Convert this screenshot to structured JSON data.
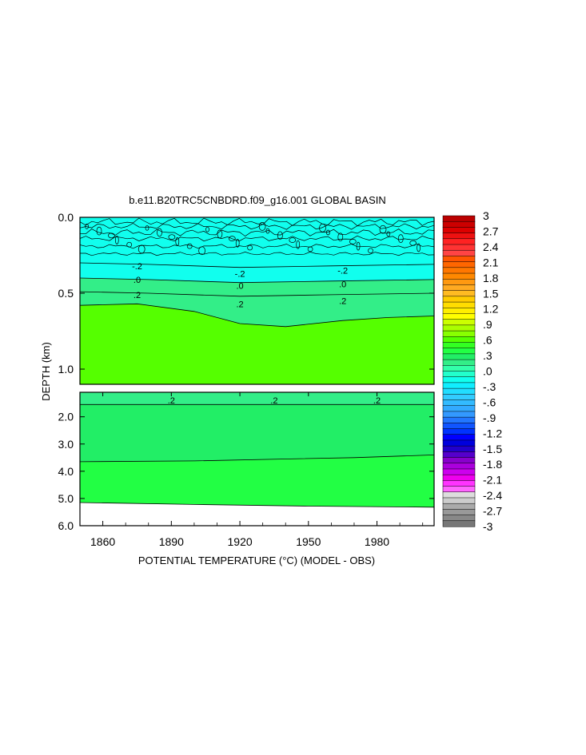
{
  "chart_data": {
    "type": "heatmap",
    "title": "b.e11.B20TRC5CNBDRD.f09_g16.001 GLOBAL BASIN",
    "xlabel": "POTENTIAL TEMPERATURE (°C) (MODEL - OBS)",
    "ylabel": "DEPTH (km)",
    "x_ticks": [
      "1860",
      "1890",
      "1920",
      "1950",
      "1980"
    ],
    "x_tick_values": [
      1860,
      1890,
      1920,
      1950,
      1980
    ],
    "xlim": [
      1850,
      2005
    ],
    "panels": [
      {
        "name": "upper",
        "ylim": [
          0.0,
          1.1
        ],
        "y_ticks": [
          "0.0",
          "0.5",
          "1.0"
        ],
        "y_tick_values": [
          0.0,
          0.5,
          1.0
        ],
        "contour_labels": [
          {
            "text": "-.2",
            "x": 1875,
            "depth": 0.32
          },
          {
            "text": ".0",
            "x": 1875,
            "depth": 0.41
          },
          {
            "text": ".2",
            "x": 1875,
            "depth": 0.51
          },
          {
            "text": "-.2",
            "x": 1920,
            "depth": 0.37
          },
          {
            "text": ".0",
            "x": 1920,
            "depth": 0.45
          },
          {
            "text": ".2",
            "x": 1920,
            "depth": 0.57
          },
          {
            "text": "-.2",
            "x": 1965,
            "depth": 0.35
          },
          {
            "text": ".0",
            "x": 1965,
            "depth": 0.44
          },
          {
            "text": ".2",
            "x": 1965,
            "depth": 0.55
          }
        ],
        "isolines": [
          {
            "level": -0.2,
            "x": [
              1850,
              1880,
              1920,
              1960,
              2005
            ],
            "depth": [
              0.3,
              0.31,
              0.33,
              0.32,
              0.31
            ]
          },
          {
            "level": 0.0,
            "x": [
              1850,
              1880,
              1920,
              1960,
              2005
            ],
            "depth": [
              0.4,
              0.41,
              0.43,
              0.42,
              0.41
            ]
          },
          {
            "level": 0.2,
            "x": [
              1850,
              1880,
              1920,
              1960,
              2005
            ],
            "depth": [
              0.49,
              0.5,
              0.52,
              0.51,
              0.5
            ]
          },
          {
            "level": 0.3,
            "x": [
              1850,
              1875,
              1900,
              1920,
              1940,
              1965,
              1985,
              2005
            ],
            "depth": [
              0.58,
              0.57,
              0.62,
              0.7,
              0.72,
              0.68,
              0.66,
              0.65
            ]
          }
        ]
      },
      {
        "name": "lower",
        "ylim": [
          1.1,
          6.0
        ],
        "y_ticks": [
          "2.0",
          "3.0",
          "4.0",
          "5.0",
          "6.0"
        ],
        "y_tick_values": [
          2.0,
          3.0,
          4.0,
          5.0,
          6.0
        ],
        "contour_labels": [
          {
            "text": ".2",
            "x": 1890,
            "depth": 1.4
          },
          {
            "text": ".2",
            "x": 1935,
            "depth": 1.4
          },
          {
            "text": ".2",
            "x": 1980,
            "depth": 1.4
          }
        ],
        "isolines": [
          {
            "level": 0.2,
            "x": [
              1850,
              2005
            ],
            "depth": [
              1.55,
              1.55
            ]
          },
          {
            "level": 0.3,
            "x": [
              1850,
              1900,
              1940,
              1970,
              2005
            ],
            "depth": [
              3.65,
              3.62,
              3.55,
              3.5,
              3.4
            ]
          },
          {
            "level": 0.2,
            "x": [
              1850,
              1900,
              1950,
              2005
            ],
            "depth": [
              5.15,
              5.22,
              5.28,
              5.32
            ]
          }
        ]
      }
    ],
    "colorbar": {
      "labels": [
        "3",
        "2.7",
        "2.4",
        "2.1",
        "1.8",
        "1.5",
        "1.2",
        ".9",
        ".6",
        ".3",
        ".0",
        "-.3",
        "-.6",
        "-.9",
        "-1.2",
        "-1.5",
        "-1.8",
        "-2.1",
        "-2.4",
        "-2.7",
        "-3"
      ],
      "colors": [
        "#bb0000",
        "#cc0000",
        "#dd0000",
        "#ee1111",
        "#ff2222",
        "#ff3333",
        "#ff4444",
        "#ff5500",
        "#ff6600",
        "#ff7700",
        "#ff8800",
        "#ff9911",
        "#ffaa22",
        "#ffbb22",
        "#ffcc00",
        "#ffdd00",
        "#ffee00",
        "#ffff00",
        "#ccff00",
        "#aaff00",
        "#88ff00",
        "#55ff00",
        "#33ff22",
        "#22ff44",
        "#22ee66",
        "#33ee88",
        "#33ffaa",
        "#22ffcc",
        "#11ffee",
        "#11eeff",
        "#22ddff",
        "#33ccff",
        "#33bbff",
        "#33aaff",
        "#3399ff",
        "#2277ff",
        "#1155ff",
        "#0033ff",
        "#0000ff",
        "#0000dd",
        "#2200cc",
        "#5500cc",
        "#8800cc",
        "#aa00dd",
        "#cc00ee",
        "#ee00ee",
        "#ff33ff",
        "#ff66ff",
        "#dddddd",
        "#cccccc",
        "#aaaaaa",
        "#999999",
        "#888888",
        "#777777"
      ]
    },
    "fill_colors": {
      "cyan": "#11ffee",
      "light_green": "#33ee88",
      "green": "#55ff00",
      "mid_green": "#22ee66",
      "bright_green": "#22ff44"
    }
  }
}
